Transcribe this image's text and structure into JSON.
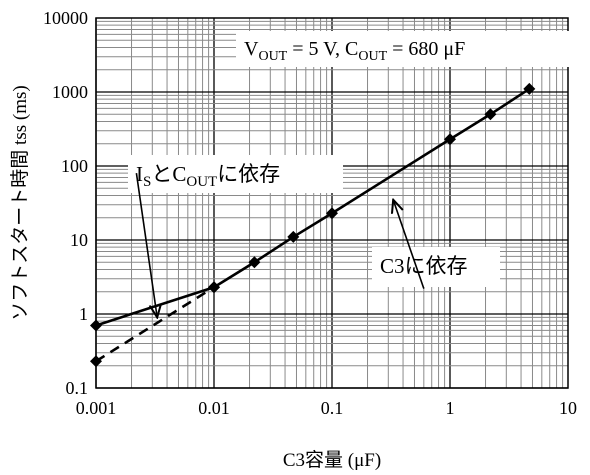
{
  "chart_data": {
    "type": "line",
    "title": "",
    "xlabel": "C3容量 (μF)",
    "ylabel": "ソフトスタート時間 tss (ms)",
    "xscale": "log",
    "yscale": "log",
    "xlim": [
      0.001,
      10
    ],
    "ylim": [
      0.1,
      10000
    ],
    "grid": true,
    "x_ticks": [
      "0.001",
      "0.01",
      "0.1",
      "1",
      "10"
    ],
    "y_ticks": [
      "0.1",
      "1",
      "10",
      "100",
      "1000",
      "10000"
    ],
    "condition_label": {
      "v_main": "V",
      "v_sub": "OUT",
      "v_rest": " = 5 V, ",
      "c_main": "C",
      "c_sub": "OUT",
      "c_rest": " = 680 μF"
    },
    "series": [
      {
        "style": "solid",
        "markers": "diamond",
        "x": [
          0.001,
          0.01,
          0.022,
          0.047,
          0.1,
          1,
          2.2,
          4.7
        ],
        "y": [
          0.7,
          2.3,
          5,
          11,
          23,
          230,
          500,
          1100
        ]
      },
      {
        "style": "dashed",
        "markers": "diamond",
        "x": [
          0.001,
          0.01
        ],
        "y": [
          0.23,
          2.3
        ]
      }
    ],
    "annotations": [
      {
        "id": "is",
        "parts": [
          {
            "t": "I"
          },
          {
            "t": "S",
            "sub": true
          },
          {
            "t": "と"
          },
          {
            "t": "C"
          },
          {
            "t": "OUT",
            "sub": true
          },
          {
            "t": "に依存"
          }
        ],
        "from": [
          0.0022,
          80
        ],
        "to": [
          0.0033,
          0.9
        ]
      },
      {
        "id": "c3",
        "parts": [
          {
            "t": "C3に依存"
          }
        ],
        "from": [
          0.6,
          2.2
        ],
        "to": [
          0.33,
          35
        ]
      }
    ]
  }
}
